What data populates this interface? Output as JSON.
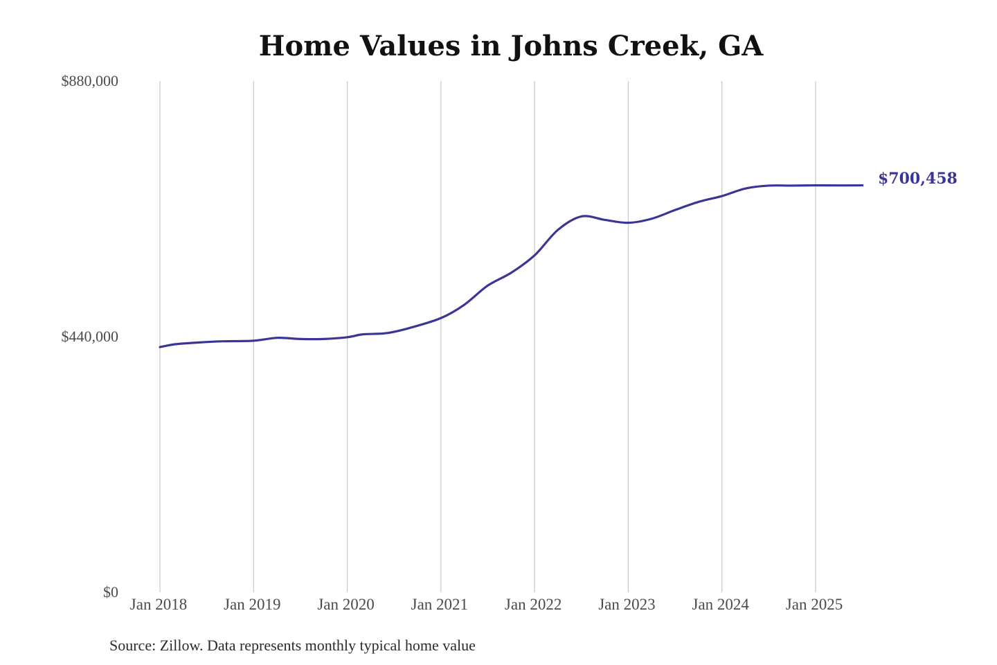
{
  "chart_data": {
    "type": "line",
    "title": "Home Values in Johns Creek, GA",
    "xlabel": "",
    "ylabel": "",
    "ylim": [
      0,
      880000
    ],
    "y_ticks": [
      0,
      440000,
      880000
    ],
    "y_tick_labels": [
      "$0",
      "$440,000",
      "$880,000"
    ],
    "x_range": [
      "2018-01",
      "2025-07"
    ],
    "x_ticks": [
      "2018-01",
      "2019-01",
      "2020-01",
      "2021-01",
      "2022-01",
      "2023-01",
      "2024-01",
      "2025-01"
    ],
    "x_tick_labels": [
      "Jan 2018",
      "Jan 2019",
      "Jan 2020",
      "Jan 2021",
      "Jan 2022",
      "Jan 2023",
      "Jan 2024",
      "Jan 2025"
    ],
    "grid": "vertical",
    "series": [
      {
        "color": "#3a3596",
        "x": [
          "2018-01",
          "2018-03",
          "2018-06",
          "2018-09",
          "2019-01",
          "2019-04",
          "2019-07",
          "2019-10",
          "2020-01",
          "2020-03",
          "2020-06",
          "2020-09",
          "2021-01",
          "2021-04",
          "2021-07",
          "2021-10",
          "2022-01",
          "2022-04",
          "2022-07",
          "2022-10",
          "2023-01",
          "2023-04",
          "2023-07",
          "2023-10",
          "2024-01",
          "2024-04",
          "2024-07",
          "2024-10",
          "2025-01",
          "2025-04",
          "2025-07"
        ],
        "values": [
          422000,
          427000,
          430000,
          432000,
          433000,
          438000,
          436000,
          436000,
          439000,
          444000,
          446000,
          455000,
          472000,
          495000,
          528000,
          550000,
          580000,
          624000,
          647000,
          641000,
          636000,
          643000,
          658000,
          672000,
          682000,
          695000,
          700000,
          700000,
          700500,
          700300,
          700458
        ]
      }
    ],
    "end_label": "$700,458",
    "source": "Source: Zillow. Data represents monthly typical home value"
  }
}
